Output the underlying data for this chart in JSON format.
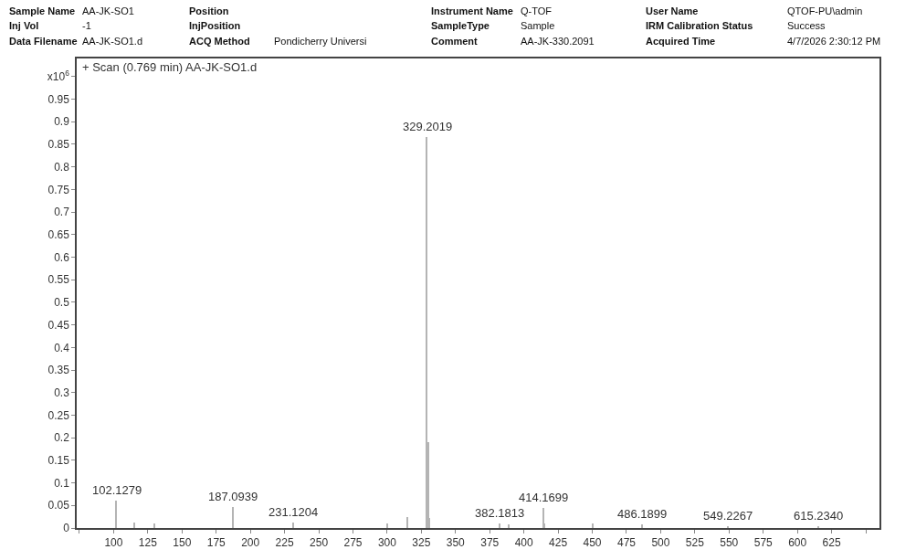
{
  "chart_data": {
    "type": "bar",
    "subtitle": "+ Scan (0.769 min) AA-JK-SO1.d",
    "x": [
      102.1279,
      115.1,
      130.1,
      187.0939,
      231.1204,
      300.1,
      315.1,
      329.2019,
      330.2,
      331.2,
      382.1813,
      389.2,
      414.1699,
      415.2,
      450.2,
      486.1899,
      549.2267,
      615.234
    ],
    "values": [
      0.06,
      0.012,
      0.01,
      0.047,
      0.012,
      0.01,
      0.025,
      0.865,
      0.19,
      0.022,
      0.01,
      0.008,
      0.045,
      0.01,
      0.01,
      0.008,
      0.004,
      0.005
    ],
    "color": "#b4b4b4",
    "xlim": [
      73,
      660
    ],
    "xticks": [
      {
        "value": 75,
        "label": null
      },
      100,
      125,
      150,
      175,
      200,
      225,
      250,
      275,
      300,
      325,
      350,
      375,
      400,
      425,
      450,
      475,
      500,
      525,
      550,
      575,
      600,
      625,
      {
        "value": 650,
        "label": null
      }
    ],
    "ylim": [
      0,
      1.04
    ],
    "yticks": [
      0,
      0.05,
      0.1,
      0.15,
      0.2,
      0.25,
      0.3,
      0.35,
      0.4,
      0.45,
      0.5,
      0.55,
      0.6,
      0.65,
      0.7,
      0.75,
      0.8,
      0.85,
      0.9,
      0.95,
      {
        "value": 1,
        "label": "x10$^{6}$"
      }
    ],
    "annotations": [
      {
        "text": "102.1279",
        "x": 102.1279,
        "y": 0.06
      },
      {
        "text": "187.0939",
        "x": 187.0939,
        "y": 0.047
      },
      {
        "text": "231.1204",
        "x": 231.1204,
        "y": 0.012
      },
      {
        "text": "329.2019",
        "x": 329.2019,
        "y": 0.865
      },
      {
        "text": "382.1813",
        "x": 382.1813,
        "y": 0.01
      },
      {
        "text": "414.1699",
        "x": 414.1699,
        "y": 0.045
      },
      {
        "text": "486.1899",
        "x": 486.1899,
        "y": 0.008
      },
      {
        "text": "549.2267",
        "x": 549.2267,
        "y": 0.004
      },
      {
        "text": "615.2340",
        "x": 615.234,
        "y": 0.005
      },
      "Sample Name",
      "AA-JK-SO1",
      "Position",
      "Instrument Name",
      "Q-TOF",
      "User Name",
      "QTOF-PU\\admin",
      "Inj Vol",
      "-1",
      "InjPosition",
      "SampleType",
      "Sample",
      "IRM Calibration Status",
      "Success",
      "Data Filename",
      "AA-JK-SO1.d",
      "ACQ Method",
      "Pondicherry Universi",
      "Comment",
      "AA-JK-330.2091",
      "Acquired Time",
      "4/7/2026 2:30:12 PM"
    ]
  }
}
